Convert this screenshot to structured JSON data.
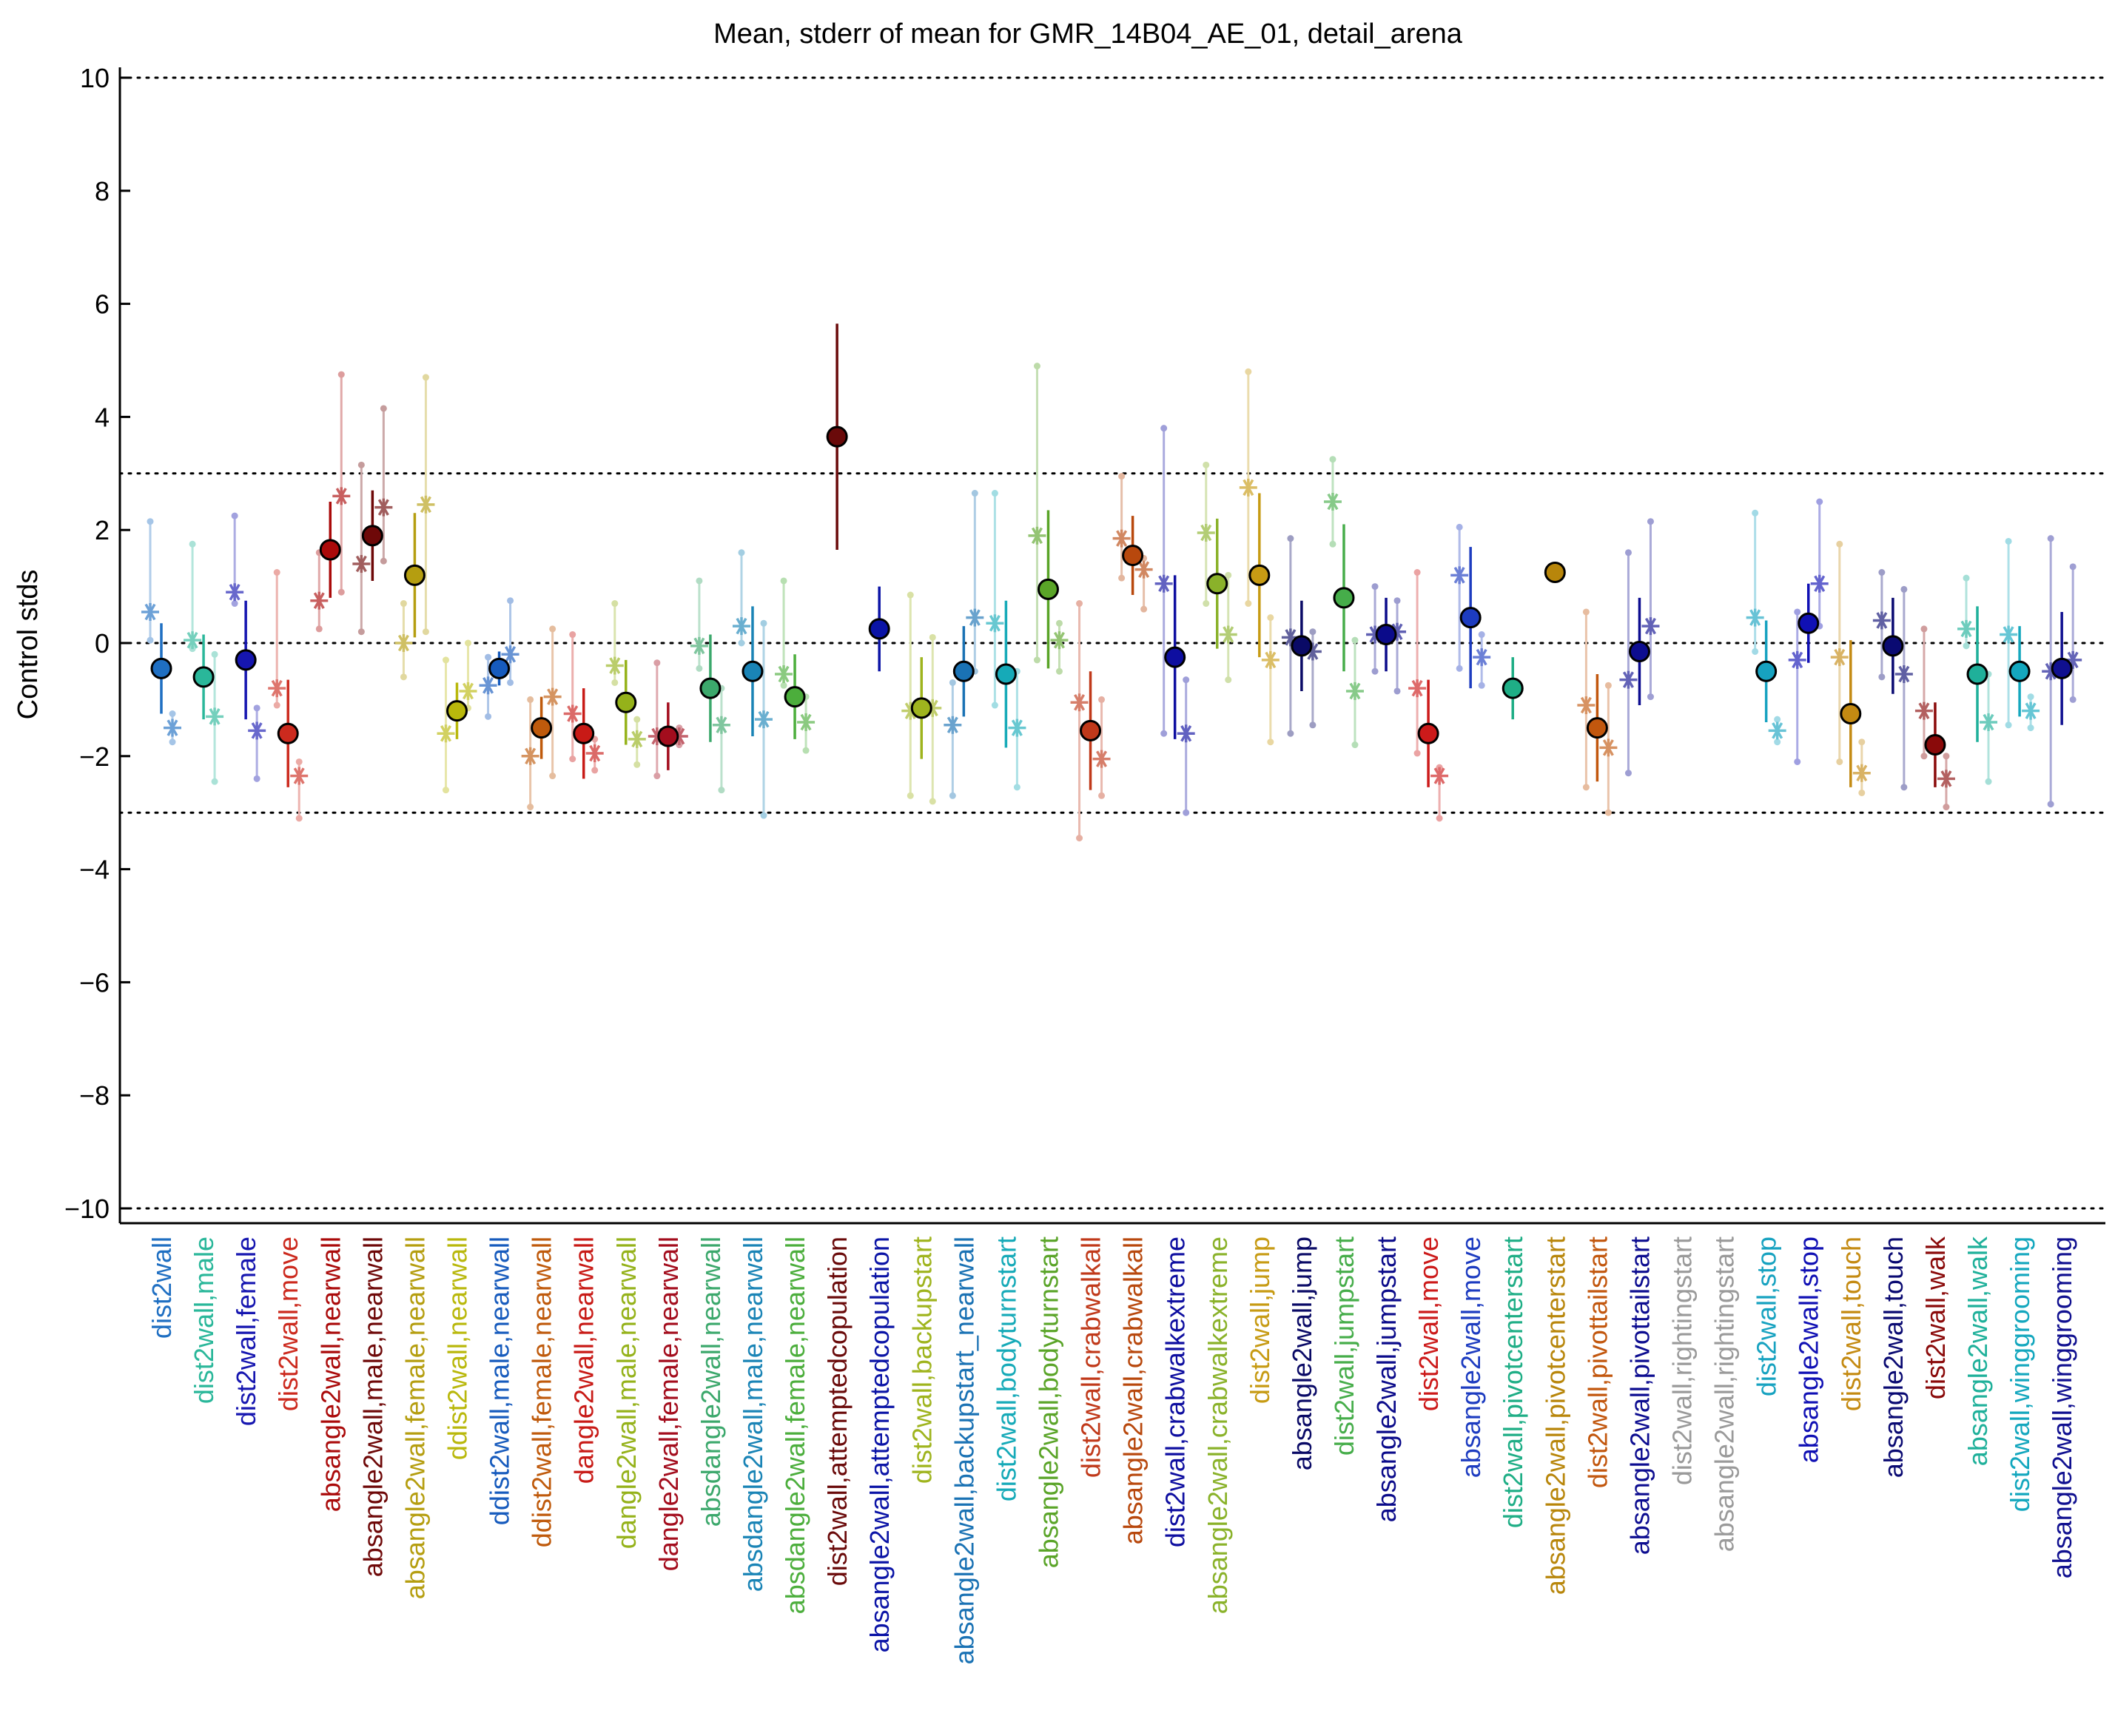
{
  "chart_data": {
    "type": "scatter",
    "title": "Mean, stderr of mean for GMR_14B04_AE_01, detail_arena",
    "ylabel": "Control stds",
    "xlabel": "",
    "ylim": [
      -10,
      10
    ],
    "yticks": [
      10,
      8,
      6,
      4,
      2,
      0,
      -2,
      -4,
      -6,
      -8,
      -10
    ],
    "ytick_labels": [
      "10",
      "8",
      "6",
      "4",
      "2",
      "0",
      "−2",
      "−4",
      "−6",
      "−8",
      "−10"
    ],
    "reference_lines": [
      10,
      3,
      0,
      -3,
      -10
    ],
    "grid": false,
    "legend": "none",
    "categories": [
      {
        "label": "dist2wall",
        "color": "#1f6fc2",
        "mean": -0.45,
        "sem": 0.8,
        "lines": [
          {
            "a": 0.55,
            "lo": 0.05,
            "hi": 2.15
          },
          {
            "a": -1.5,
            "lo": -1.75,
            "hi": -1.25
          }
        ]
      },
      {
        "label": "dist2wall,male",
        "color": "#2ab79a",
        "mean": -0.6,
        "sem": 0.75,
        "lines": [
          {
            "a": 0.05,
            "lo": -0.1,
            "hi": 1.75
          },
          {
            "a": -1.3,
            "lo": -2.45,
            "hi": -0.2
          }
        ]
      },
      {
        "label": "dist2wall,female",
        "color": "#1616b0",
        "mean": -0.3,
        "sem": 1.05,
        "lines": [
          {
            "a": 0.9,
            "lo": 0.7,
            "hi": 2.25
          },
          {
            "a": -1.55,
            "lo": -2.4,
            "hi": -1.15
          }
        ]
      },
      {
        "label": "dist2wall,move",
        "color": "#cc2a1e",
        "mean": -1.6,
        "sem": 0.95,
        "lines": [
          {
            "a": -0.8,
            "lo": -1.1,
            "hi": 1.25
          },
          {
            "a": -2.35,
            "lo": -3.1,
            "hi": -2.1
          }
        ]
      },
      {
        "label": "absangle2wall,nearwall",
        "color": "#aa0a0a",
        "mean": 1.65,
        "sem": 0.85,
        "lines": [
          {
            "a": 0.75,
            "lo": 0.25,
            "hi": 1.6
          },
          {
            "a": 2.6,
            "lo": 0.9,
            "hi": 4.75
          }
        ]
      },
      {
        "label": "absangle2wall,male,nearwall",
        "color": "#6e0808",
        "mean": 1.9,
        "sem": 0.8,
        "lines": [
          {
            "a": 1.4,
            "lo": 0.2,
            "hi": 3.15
          },
          {
            "a": 2.4,
            "lo": 1.45,
            "hi": 4.15
          }
        ]
      },
      {
        "label": "absangle2wall,female,nearwall",
        "color": "#b59e10",
        "mean": 1.2,
        "sem": 1.1,
        "lines": [
          {
            "a": 0.0,
            "lo": -0.6,
            "hi": 0.7
          },
          {
            "a": 2.45,
            "lo": 0.2,
            "hi": 4.7
          }
        ]
      },
      {
        "label": "ddist2wall,nearwall",
        "color": "#b9b80c",
        "mean": -1.2,
        "sem": 0.5,
        "lines": [
          {
            "a": -1.6,
            "lo": -2.6,
            "hi": -0.3
          },
          {
            "a": -0.85,
            "lo": -1.15,
            "hi": 0.0
          }
        ]
      },
      {
        "label": "ddist2wall,male,nearwall",
        "color": "#175bbd",
        "mean": -0.45,
        "sem": 0.3,
        "lines": [
          {
            "a": -0.75,
            "lo": -1.3,
            "hi": -0.25
          },
          {
            "a": -0.2,
            "lo": -0.7,
            "hi": 0.75
          }
        ]
      },
      {
        "label": "ddist2wall,female,nearwall",
        "color": "#bf5a0c",
        "mean": -1.5,
        "sem": 0.55,
        "lines": [
          {
            "a": -2.0,
            "lo": -2.9,
            "hi": -1.0
          },
          {
            "a": -0.95,
            "lo": -2.35,
            "hi": 0.25
          }
        ]
      },
      {
        "label": "dangle2wall,nearwall",
        "color": "#c81a16",
        "mean": -1.6,
        "sem": 0.8,
        "lines": [
          {
            "a": -1.25,
            "lo": -2.05,
            "hi": 0.15
          },
          {
            "a": -1.95,
            "lo": -2.25,
            "hi": -1.7
          }
        ]
      },
      {
        "label": "dangle2wall,male,nearwall",
        "color": "#95b21a",
        "mean": -1.05,
        "sem": 0.75,
        "lines": [
          {
            "a": -0.4,
            "lo": -0.7,
            "hi": 0.7
          },
          {
            "a": -1.7,
            "lo": -2.15,
            "hi": -1.35
          }
        ]
      },
      {
        "label": "dangle2wall,female,nearwall",
        "color": "#a30d1d",
        "mean": -1.65,
        "sem": 0.6,
        "lines": [
          {
            "a": -1.65,
            "lo": -2.35,
            "hi": -0.35
          },
          {
            "a": -1.65,
            "lo": -1.8,
            "hi": -1.5
          }
        ]
      },
      {
        "label": "absdangle2wall,nearwall",
        "color": "#3ca86c",
        "mean": -0.8,
        "sem": 0.95,
        "lines": [
          {
            "a": -0.05,
            "lo": -0.45,
            "hi": 1.1
          },
          {
            "a": -1.45,
            "lo": -2.6,
            "hi": -0.8
          }
        ]
      },
      {
        "label": "absdangle2wall,male,nearwall",
        "color": "#1a84b6",
        "mean": -0.5,
        "sem": 1.15,
        "lines": [
          {
            "a": 0.3,
            "lo": 0.0,
            "hi": 1.6
          },
          {
            "a": -1.35,
            "lo": -3.05,
            "hi": 0.35
          }
        ]
      },
      {
        "label": "absdangle2wall,female,nearwall",
        "color": "#4cae3c",
        "mean": -0.95,
        "sem": 0.75,
        "lines": [
          {
            "a": -0.55,
            "lo": -0.75,
            "hi": 1.1
          },
          {
            "a": -1.4,
            "lo": -1.9,
            "hi": -0.95
          }
        ]
      },
      {
        "label": "dist2wall,attemptedcopulation",
        "color": "#6a0a0a",
        "mean": 3.65,
        "sem": 2.0,
        "lines": []
      },
      {
        "label": "absangle2wall,attemptedcopulation",
        "color": "#0b14a6",
        "mean": 0.25,
        "sem": 0.75,
        "lines": []
      },
      {
        "label": "dist2wall,backupstart",
        "color": "#9fb41e",
        "mean": -1.15,
        "sem": 0.9,
        "lines": [
          {
            "a": -1.2,
            "lo": -2.7,
            "hi": 0.85
          },
          {
            "a": -1.15,
            "lo": -2.8,
            "hi": 0.1
          }
        ]
      },
      {
        "label": "absangle2wall,backupstart_nearwall",
        "color": "#1a72b4",
        "mean": -0.5,
        "sem": 0.8,
        "lines": [
          {
            "a": -1.45,
            "lo": -2.7,
            "hi": -0.7
          },
          {
            "a": 0.45,
            "lo": -0.5,
            "hi": 2.65
          }
        ]
      },
      {
        "label": "dist2wall,bodyturnstart",
        "color": "#16aab8",
        "mean": -0.55,
        "sem": 1.3,
        "lines": [
          {
            "a": 0.35,
            "lo": -1.1,
            "hi": 2.65
          },
          {
            "a": -1.5,
            "lo": -2.55,
            "hi": -0.5
          }
        ]
      },
      {
        "label": "absangle2wall,bodyturnstart",
        "color": "#5aa428",
        "mean": 0.95,
        "sem": 1.4,
        "lines": [
          {
            "a": 1.9,
            "lo": -0.3,
            "hi": 4.9
          },
          {
            "a": 0.05,
            "lo": -0.5,
            "hi": 0.35
          }
        ]
      },
      {
        "label": "dist2wall,crabwalkall",
        "color": "#c0391a",
        "mean": -1.55,
        "sem": 1.05,
        "lines": [
          {
            "a": -1.05,
            "lo": -3.45,
            "hi": 0.7
          },
          {
            "a": -2.05,
            "lo": -2.7,
            "hi": -1.0
          }
        ]
      },
      {
        "label": "absangle2wall,crabwalkall",
        "color": "#b8480d",
        "mean": 1.55,
        "sem": 0.7,
        "lines": [
          {
            "a": 1.85,
            "lo": 1.15,
            "hi": 2.95
          },
          {
            "a": 1.3,
            "lo": 0.6,
            "hi": 1.5
          }
        ]
      },
      {
        "label": "dist2wall,crabwalkextreme",
        "color": "#0e0ea0",
        "mean": -0.25,
        "sem": 1.45,
        "lines": [
          {
            "a": 1.05,
            "lo": -1.6,
            "hi": 3.8
          },
          {
            "a": -1.6,
            "lo": -3.0,
            "hi": -0.65
          }
        ]
      },
      {
        "label": "absangle2wall,crabwalkextreme",
        "color": "#8ab22a",
        "mean": 1.05,
        "sem": 1.15,
        "lines": [
          {
            "a": 1.95,
            "lo": 0.7,
            "hi": 3.15
          },
          {
            "a": 0.15,
            "lo": -0.65,
            "hi": 1.2
          }
        ]
      },
      {
        "label": "dist2wall,jump",
        "color": "#c79b14",
        "mean": 1.2,
        "sem": 1.45,
        "lines": [
          {
            "a": 2.75,
            "lo": 0.7,
            "hi": 4.8
          },
          {
            "a": -0.3,
            "lo": -1.75,
            "hi": 0.45
          }
        ]
      },
      {
        "label": "absangle2wall,jump",
        "color": "#0a0a66",
        "mean": -0.05,
        "sem": 0.8,
        "lines": [
          {
            "a": 0.1,
            "lo": -1.6,
            "hi": 1.85
          },
          {
            "a": -0.15,
            "lo": -1.45,
            "hi": 0.2
          }
        ]
      },
      {
        "label": "dist2wall,jumpstart",
        "color": "#46ad4a",
        "mean": 0.8,
        "sem": 1.3,
        "lines": [
          {
            "a": 2.5,
            "lo": 1.75,
            "hi": 3.25
          },
          {
            "a": -0.85,
            "lo": -1.8,
            "hi": 0.05
          }
        ]
      },
      {
        "label": "absangle2wall,jumpstart",
        "color": "#0b0b8a",
        "mean": 0.15,
        "sem": 0.65,
        "lines": [
          {
            "a": 0.15,
            "lo": -0.5,
            "hi": 1.0
          },
          {
            "a": 0.2,
            "lo": -0.85,
            "hi": 0.75
          }
        ]
      },
      {
        "label": "dist2wall,move",
        "color": "#cc1a1a",
        "mean": -1.6,
        "sem": 0.95,
        "lines": [
          {
            "a": -0.8,
            "lo": -1.95,
            "hi": 1.25
          },
          {
            "a": -2.35,
            "lo": -3.1,
            "hi": -2.2
          }
        ]
      },
      {
        "label": "absangle2wall,move",
        "color": "#1d3cc0",
        "mean": 0.45,
        "sem": 1.25,
        "lines": [
          {
            "a": 1.2,
            "lo": -0.45,
            "hi": 2.05
          },
          {
            "a": -0.25,
            "lo": -0.75,
            "hi": 0.15
          }
        ]
      },
      {
        "label": "dist2wall,pivotcenterstart",
        "color": "#1fae86",
        "mean": -0.8,
        "sem": 0.55,
        "lines": []
      },
      {
        "label": "absangle2wall,pivotcenterstart",
        "color": "#b8860b",
        "mean": 1.25,
        "sem": 0.0,
        "lines": []
      },
      {
        "label": "dist2wall,pivottailstart",
        "color": "#c2570e",
        "mean": -1.5,
        "sem": 0.95,
        "lines": [
          {
            "a": -1.1,
            "lo": -2.55,
            "hi": 0.55
          },
          {
            "a": -1.85,
            "lo": -3.0,
            "hi": -0.75
          }
        ]
      },
      {
        "label": "absangle2wall,pivottailstart",
        "color": "#0d0d90",
        "mean": -0.15,
        "sem": 0.95,
        "lines": [
          {
            "a": -0.65,
            "lo": -2.3,
            "hi": 1.6
          },
          {
            "a": 0.3,
            "lo": -0.95,
            "hi": 2.15
          }
        ]
      },
      {
        "label": "dist2wall,rightingstart",
        "color": "#9a9a9a",
        "mean": null,
        "sem": null,
        "lines": []
      },
      {
        "label": "absangle2wall,rightingstart",
        "color": "#9a9a9a",
        "mean": null,
        "sem": null,
        "lines": []
      },
      {
        "label": "dist2wall,stop",
        "color": "#17a2c0",
        "mean": -0.5,
        "sem": 0.9,
        "lines": [
          {
            "a": 0.45,
            "lo": -0.15,
            "hi": 2.3
          },
          {
            "a": -1.55,
            "lo": -1.75,
            "hi": -1.35
          }
        ]
      },
      {
        "label": "absangle2wall,stop",
        "color": "#1010b4",
        "mean": 0.35,
        "sem": 0.7,
        "lines": [
          {
            "a": -0.3,
            "lo": -2.1,
            "hi": 0.55
          },
          {
            "a": 1.05,
            "lo": 0.3,
            "hi": 2.5
          }
        ]
      },
      {
        "label": "dist2wall,touch",
        "color": "#c48a12",
        "mean": -1.25,
        "sem": 1.3,
        "lines": [
          {
            "a": -0.25,
            "lo": -2.1,
            "hi": 1.75
          },
          {
            "a": -2.3,
            "lo": -2.65,
            "hi": -1.75
          }
        ]
      },
      {
        "label": "absangle2wall,touch",
        "color": "#0a0a72",
        "mean": -0.05,
        "sem": 0.85,
        "lines": [
          {
            "a": 0.4,
            "lo": -0.6,
            "hi": 1.25
          },
          {
            "a": -0.55,
            "lo": -2.55,
            "hi": 0.95
          }
        ]
      },
      {
        "label": "dist2wall,walk",
        "color": "#8a0a0a",
        "mean": -1.8,
        "sem": 0.75,
        "lines": [
          {
            "a": -1.2,
            "lo": -2.0,
            "hi": 0.25
          },
          {
            "a": -2.4,
            "lo": -2.9,
            "hi": -2.0
          }
        ]
      },
      {
        "label": "absangle2wall,walk",
        "color": "#1fb09a",
        "mean": -0.55,
        "sem": 1.2,
        "lines": [
          {
            "a": 0.25,
            "lo": -0.05,
            "hi": 1.15
          },
          {
            "a": -1.4,
            "lo": -2.45,
            "hi": -0.55
          }
        ]
      },
      {
        "label": "dist2wall,winggrooming",
        "color": "#14a7be",
        "mean": -0.5,
        "sem": 0.8,
        "lines": [
          {
            "a": 0.15,
            "lo": -1.45,
            "hi": 1.8
          },
          {
            "a": -1.2,
            "lo": -1.5,
            "hi": -0.95
          }
        ]
      },
      {
        "label": "absangle2wall,winggrooming",
        "color": "#101090",
        "mean": -0.45,
        "sem": 1.0,
        "lines": [
          {
            "a": -0.5,
            "lo": -2.85,
            "hi": 1.85
          },
          {
            "a": -0.3,
            "lo": -1.0,
            "hi": 1.35
          }
        ]
      }
    ]
  }
}
